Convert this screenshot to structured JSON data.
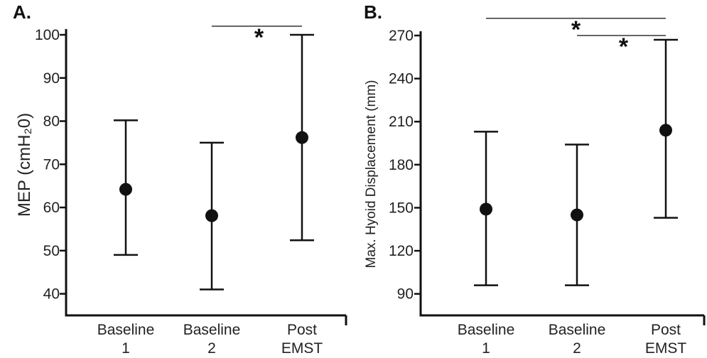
{
  "chart_data": [
    {
      "type": "scatter",
      "panel_label": "A.",
      "title": "",
      "xlabel": "",
      "ylabel": "MEP (cmH₂0)",
      "ylim": [
        35,
        101
      ],
      "yticks": [
        "40",
        "50",
        "60",
        "70",
        "80",
        "90",
        "100"
      ],
      "categories": [
        [
          "Baseline",
          "1"
        ],
        [
          "Baseline",
          "2"
        ],
        [
          "Post",
          "EMST"
        ]
      ],
      "series": [
        {
          "values": [
            64.2,
            58.1,
            76.2
          ],
          "error_low": [
            49.0,
            41.0,
            52.4
          ],
          "error_high": [
            80.2,
            75.0,
            100.0
          ]
        }
      ],
      "significance": [
        {
          "from": 1,
          "to": 2,
          "y": 102,
          "label": "*"
        }
      ],
      "grid": false,
      "legend": "none"
    },
    {
      "type": "scatter",
      "panel_label": "B.",
      "title": "",
      "xlabel": "",
      "ylabel": "Max. Hyoid Displacement (mm)",
      "ylim": [
        75,
        272
      ],
      "yticks": [
        "90",
        "120",
        "150",
        "180",
        "210",
        "240",
        "270"
      ],
      "categories": [
        [
          "Baseline",
          "1"
        ],
        [
          "Baseline",
          "2"
        ],
        [
          "Post",
          "EMST"
        ]
      ],
      "series": [
        {
          "values": [
            149,
            145,
            204
          ],
          "error_low": [
            96,
            96,
            143
          ],
          "error_high": [
            203,
            194,
            267
          ]
        }
      ],
      "significance": [
        {
          "from": 0,
          "to": 2,
          "y": 282,
          "label": "*"
        },
        {
          "from": 1,
          "to": 2,
          "y": 270,
          "label": "*"
        }
      ],
      "grid": false,
      "legend": "none"
    }
  ]
}
